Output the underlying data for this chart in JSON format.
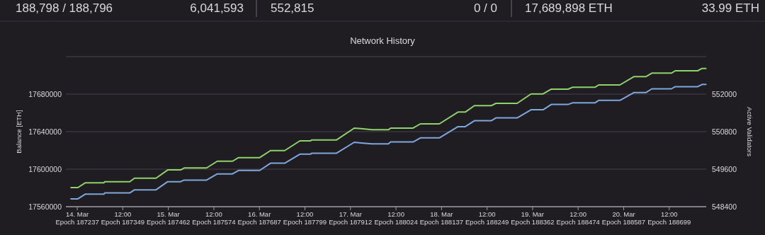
{
  "chart_data": {
    "type": "line",
    "title": "Network History",
    "ylabel": "Balance [ETH]",
    "y2label": "Active Validators",
    "annotations": [
      "188,798 / 188,796",
      "6,041,593",
      "552,815",
      "0 / 0",
      "17,689,898 ETH",
      "33.99 ETH"
    ],
    "x": [
      "--03-13T22:20",
      "--03-14T00:10",
      "--03-14T02:05",
      "--03-14T07:00",
      "--03-14T07:15",
      "--03-14T13:50",
      "--03-14T15:05",
      "--03-14T20:45",
      "--03-14T23:50",
      "--03-15T03:15",
      "--03-15T04:10",
      "--03-15T10:05",
      "--03-15T12:55",
      "--03-15T16:55",
      "--03-15T18:30",
      "--03-16T00:05",
      "--03-16T02:55",
      "--03-16T06:40",
      "--03-16T10:40",
      "--03-16T13:30",
      "--03-16T13:45",
      "--03-16T20:20",
      "--03-17T01:00",
      "--03-17T02:50",
      "--03-17T05:40",
      "--03-17T10:00",
      "--03-17T10:35",
      "--03-17T16:30",
      "--03-17T18:25",
      "--03-17T23:25",
      "--03-18T04:20",
      "--03-18T06:15",
      "--03-18T08:40",
      "--03-18T13:05",
      "--03-18T14:20",
      "--03-18T19:55",
      "--03-18T23:35",
      "--03-19T02:45",
      "--03-19T04:55",
      "--03-19T09:20",
      "--03-19T10:30",
      "--03-19T16:25",
      "--03-19T17:25",
      "--03-19T23:00",
      "--03-20T02:40",
      "--03-20T05:50",
      "--03-20T07:25",
      "--03-20T12:35",
      "--03-20T13:35",
      "--03-20T19:30",
      "--03-20T20:40",
      "--03-20T21:40"
    ],
    "series": [
      {
        "color": "#8fd16a",
        "axis": "y",
        "values": [
          17580400,
          17580400,
          17585400,
          17585400,
          17586600,
          17586600,
          17590400,
          17590400,
          17599200,
          17599200,
          17601300,
          17601300,
          17608500,
          17608500,
          17612300,
          17612300,
          17619800,
          17619800,
          17630200,
          17630200,
          17631200,
          17631200,
          17643800,
          17643200,
          17642000,
          17642000,
          17643800,
          17643800,
          17648300,
          17648300,
          17660900,
          17660900,
          17667700,
          17667700,
          17670200,
          17670200,
          17680200,
          17680200,
          17685300,
          17685300,
          17687300,
          17687300,
          17689800,
          17689800,
          17698600,
          17698600,
          17702400,
          17702400,
          17704900,
          17704900,
          17707400,
          17707400
        ]
      },
      {
        "color": "#7ea7dc",
        "axis": "y2",
        "values": [
          548650,
          548650,
          548800,
          548800,
          548840,
          548840,
          548940,
          548940,
          549200,
          549200,
          549250,
          549250,
          549450,
          549450,
          549560,
          549560,
          549790,
          549790,
          550080,
          550080,
          550110,
          550110,
          550460,
          550440,
          550410,
          550410,
          550470,
          550470,
          550600,
          550600,
          550960,
          550960,
          551150,
          551150,
          551240,
          551240,
          551500,
          551500,
          551670,
          551670,
          551720,
          551720,
          551800,
          551800,
          552050,
          552050,
          552170,
          552170,
          552240,
          552240,
          552310,
          552310
        ]
      }
    ],
    "xlim": [
      "--03-13T21:00",
      "--03-20T21:45"
    ],
    "xticks": [
      {
        "value": "--03-14T00:00",
        "label": "14. Mar\nEpoch 187237"
      },
      {
        "value": "--03-14T12:00",
        "label": "12:00\nEpoch 187349"
      },
      {
        "value": "--03-15T00:00",
        "label": "15. Mar\nEpoch 187462"
      },
      {
        "value": "--03-15T12:00",
        "label": "12:00\nEpoch 187574"
      },
      {
        "value": "--03-16T00:00",
        "label": "16. Mar\nEpoch 187687"
      },
      {
        "value": "--03-16T12:00",
        "label": "12:00\nEpoch 187799"
      },
      {
        "value": "--03-17T00:00",
        "label": "17. Mar\nEpoch 187912"
      },
      {
        "value": "--03-17T12:00",
        "label": "12:00\nEpoch 188024"
      },
      {
        "value": "--03-18T00:00",
        "label": "18. Mar\nEpoch 188137"
      },
      {
        "value": "--03-18T12:00",
        "label": "12:00\nEpoch 188249"
      },
      {
        "value": "--03-19T00:00",
        "label": "19. Mar\nEpoch 188362"
      },
      {
        "value": "--03-19T12:00",
        "label": "12:00\nEpoch 188474"
      },
      {
        "value": "--03-20T00:00",
        "label": "20. Mar\nEpoch 188587"
      },
      {
        "value": "--03-20T12:00",
        "label": "12:00\nEpoch 188699"
      }
    ],
    "ylim": [
      17560000,
      17720000
    ],
    "yticks": [
      17560000,
      17600000,
      17640000,
      17680000,
      {
        "value": 17720000,
        "label": null
      }
    ],
    "y2lim": [
      548400,
      553200
    ],
    "y2ticks": [
      548400,
      549600,
      550800,
      552000
    ],
    "grid": "y"
  }
}
